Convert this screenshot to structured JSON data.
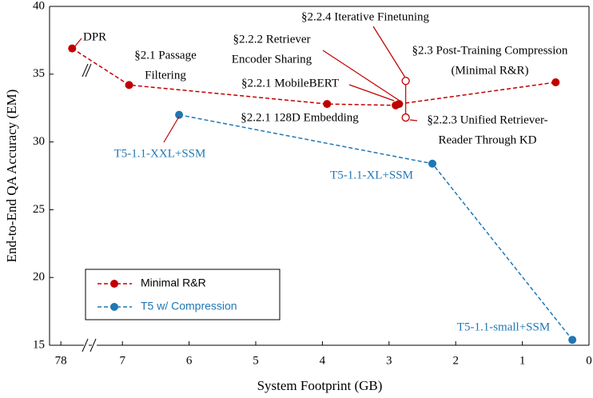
{
  "chart_data": {
    "type": "scatter-line",
    "x_label": "System Footprint (GB)",
    "y_label": "End-to-End QA Accuracy (EM)",
    "xlim": [
      78.2,
      0
    ],
    "x_break": [
      77.5,
      7.5
    ],
    "ylim": [
      15,
      40
    ],
    "xticks": [
      78,
      7,
      6,
      5,
      4,
      3,
      2,
      1,
      0
    ],
    "yticks": [
      15,
      20,
      25,
      30,
      35,
      40
    ],
    "series": [
      {
        "name": "Minimal R&R",
        "color": "#c00000",
        "x": [
          77.8,
          6.9,
          3.93,
          2.9,
          2.85,
          0.5
        ],
        "values": [
          36.9,
          34.2,
          32.8,
          32.7,
          32.8,
          34.4
        ]
      },
      {
        "name": "T5 w/ Compression",
        "color": "#1f77b4",
        "x": [
          6.15,
          2.35,
          0.25
        ],
        "values": [
          32.0,
          28.4,
          15.4
        ]
      }
    ],
    "hollow_points": {
      "color": "#c00000",
      "x": [
        2.75,
        2.75
      ],
      "values": [
        34.5,
        31.8
      ]
    },
    "annotations": [
      {
        "lines": [
          "DPR"
        ],
        "color": "#000000"
      },
      {
        "lines": [
          "§2.1 Passage",
          "Filtering"
        ],
        "color": "#000000"
      },
      {
        "lines": [
          "§2.2.4 Iterative Finetuning"
        ],
        "color": "#000000"
      },
      {
        "lines": [
          "§2.2.2 Retriever",
          "Encoder Sharing"
        ],
        "color": "#000000"
      },
      {
        "lines": [
          "§2.3 Post-Training Compression",
          "(Minimal R&R)"
        ],
        "color": "#000000"
      },
      {
        "lines": [
          "§2.2.1 MobileBERT"
        ],
        "color": "#000000"
      },
      {
        "lines": [
          "§2.2.1 128D Embedding"
        ],
        "color": "#000000"
      },
      {
        "lines": [
          "§2.2.3 Unified Retriever-",
          "Reader Through KD"
        ],
        "color": "#000000"
      },
      {
        "lines": [
          "T5-1.1-XXL+SSM"
        ],
        "color": "#1f77b4"
      },
      {
        "lines": [
          "T5-1.1-XL+SSM"
        ],
        "color": "#1f77b4"
      },
      {
        "lines": [
          "T5-1.1-small+SSM"
        ],
        "color": "#1f77b4"
      }
    ]
  }
}
